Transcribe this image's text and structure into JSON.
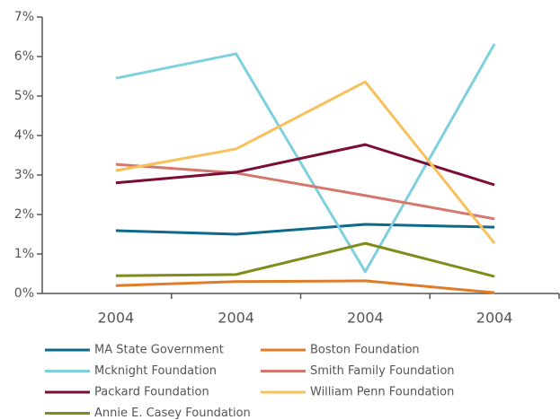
{
  "chart_data": {
    "type": "line",
    "categories": [
      "2004",
      "2004",
      "2004",
      "2004"
    ],
    "series": [
      {
        "name": "MA State Government",
        "color": "#0e6a8a",
        "values": [
          1.59,
          1.5,
          1.75,
          1.68
        ]
      },
      {
        "name": "Boston Foundation",
        "color": "#e07b28",
        "values": [
          0.2,
          0.3,
          0.32,
          0.02
        ]
      },
      {
        "name": "Mcknight Foundation",
        "color": "#7fd0df",
        "values": [
          5.45,
          6.07,
          0.55,
          6.32
        ]
      },
      {
        "name": "Smith Family Foundation",
        "color": "#d4776c",
        "values": [
          3.27,
          3.05,
          2.48,
          1.89
        ]
      },
      {
        "name": "Packard Foundation",
        "color": "#7a0c35",
        "values": [
          2.8,
          3.07,
          3.77,
          2.75
        ]
      },
      {
        "name": "William Penn Foundation",
        "color": "#f8c05a",
        "values": [
          3.11,
          3.66,
          5.36,
          1.27
        ]
      },
      {
        "name": "Annie E. Casey Foundation",
        "color": "#7f8c1a",
        "values": [
          0.45,
          0.48,
          1.27,
          0.43
        ]
      }
    ],
    "ylim": [
      0,
      7
    ],
    "yticks": [
      {
        "value": 0,
        "label": "0%"
      },
      {
        "value": 1,
        "label": "1%"
      },
      {
        "value": 2,
        "label": "2%"
      },
      {
        "value": 3,
        "label": "3%"
      },
      {
        "value": 4,
        "label": "4%"
      },
      {
        "value": 5,
        "label": "5%"
      },
      {
        "value": 6,
        "label": "6%"
      },
      {
        "value": 7,
        "label": "7%"
      }
    ],
    "grid": false,
    "legend": "bottom"
  }
}
